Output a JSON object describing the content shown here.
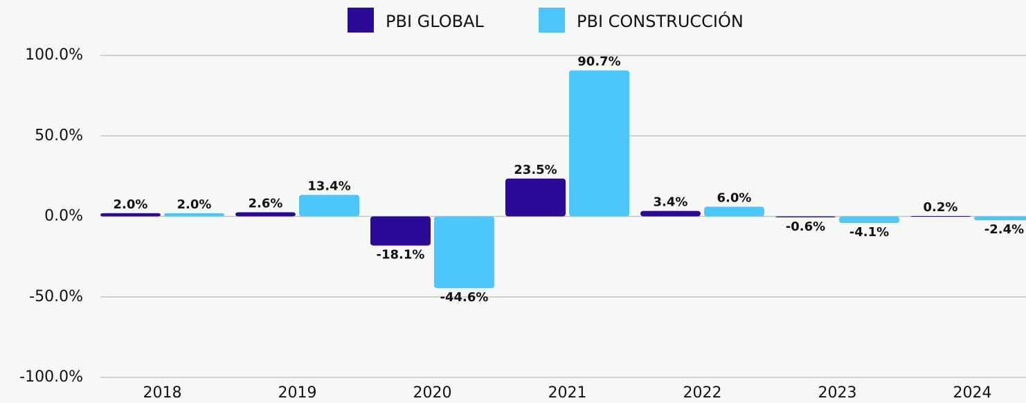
{
  "chart_data": {
    "type": "bar",
    "categories": [
      "2018",
      "2019",
      "2020",
      "2021",
      "2022",
      "2023",
      "2024"
    ],
    "series": [
      {
        "name": "PBI GLOBAL",
        "color": "#2c0a98",
        "values": [
          2.0,
          2.6,
          -18.1,
          23.5,
          3.4,
          -0.6,
          0.2
        ],
        "value_labels": [
          "2.0%",
          "2.6%",
          "-18.1%",
          "23.5%",
          "3.4%",
          "-0.6%",
          "0.2%"
        ]
      },
      {
        "name": "PBI CONSTRUCCIÓN",
        "color": "#4cc6fb",
        "values": [
          2.0,
          13.4,
          -44.6,
          90.7,
          6.0,
          -4.1,
          -2.4
        ],
        "value_labels": [
          "2.0%",
          "13.4%",
          "-44.6%",
          "90.7%",
          "6.0%",
          "-4.1%",
          "-2.4%"
        ]
      }
    ],
    "ylim": [
      -100,
      100
    ],
    "yticks": [
      {
        "value": -100,
        "label": "-100.0%"
      },
      {
        "value": -50,
        "label": "-50.0%"
      },
      {
        "value": 0,
        "label": "0.0%"
      },
      {
        "value": 50,
        "label": "50.0%"
      },
      {
        "value": 100,
        "label": "100.0%"
      }
    ],
    "grid": true
  }
}
